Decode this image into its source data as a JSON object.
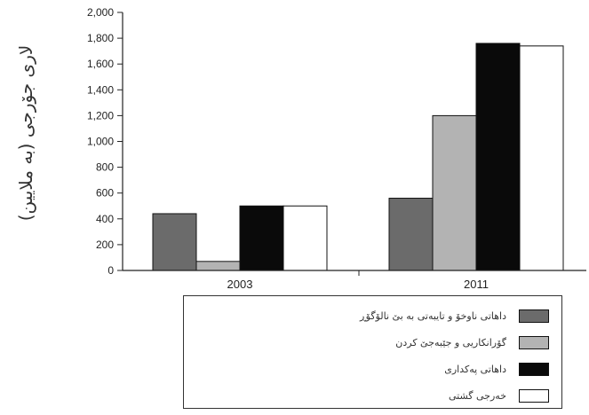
{
  "chart_data": {
    "type": "bar",
    "ylabel": "لاری جۆرجی (بە ملایین)",
    "xlabel": "",
    "ylim": [
      0,
      2000
    ],
    "yticks": [
      "0",
      "200",
      "400",
      "600",
      "800",
      "1,000",
      "1,200",
      "1,400",
      "1,600",
      "1,800",
      "2,000"
    ],
    "categories": [
      "2003",
      "2011"
    ],
    "series": [
      {
        "name": "داهاتی ناوخۆ و تایبەتی بە بێ نالۆگۆڕ",
        "color": "#6b6b6b",
        "values": [
          440,
          560
        ]
      },
      {
        "name": "گۆرانکاریی و جێبەجێ کردن",
        "color": "#b3b3b3",
        "values": [
          70,
          1200
        ]
      },
      {
        "name": "داهاتی پەکداری",
        "color": "#0a0a0a",
        "values": [
          500,
          1760
        ]
      },
      {
        "name": "خەرجی گشتی",
        "color": "#ffffff",
        "values": [
          500,
          1740
        ]
      }
    ],
    "legend_position": "bottom",
    "grid": false
  }
}
